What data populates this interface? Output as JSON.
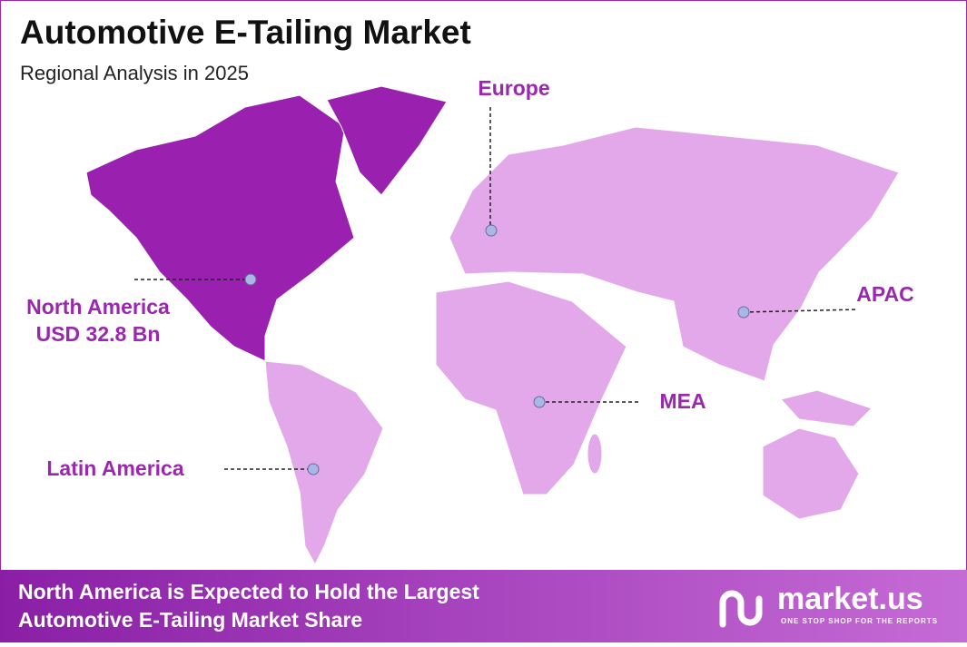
{
  "header": {
    "title": "Automotive E-Tailing Market",
    "subtitle": "Regional Analysis in 2025"
  },
  "regions": [
    {
      "name": "North America",
      "value": "USD 32.8 Bn"
    },
    {
      "name": "Europe"
    },
    {
      "name": "APAC"
    },
    {
      "name": "MEA"
    },
    {
      "name": "Latin America"
    }
  ],
  "footer": {
    "lines": [
      "North America is Expected to Hold the Largest",
      "Automotive E-Tailing Market Share"
    ],
    "brand": "market.us",
    "tagline": "ONE STOP SHOP FOR THE REPORTS"
  }
}
